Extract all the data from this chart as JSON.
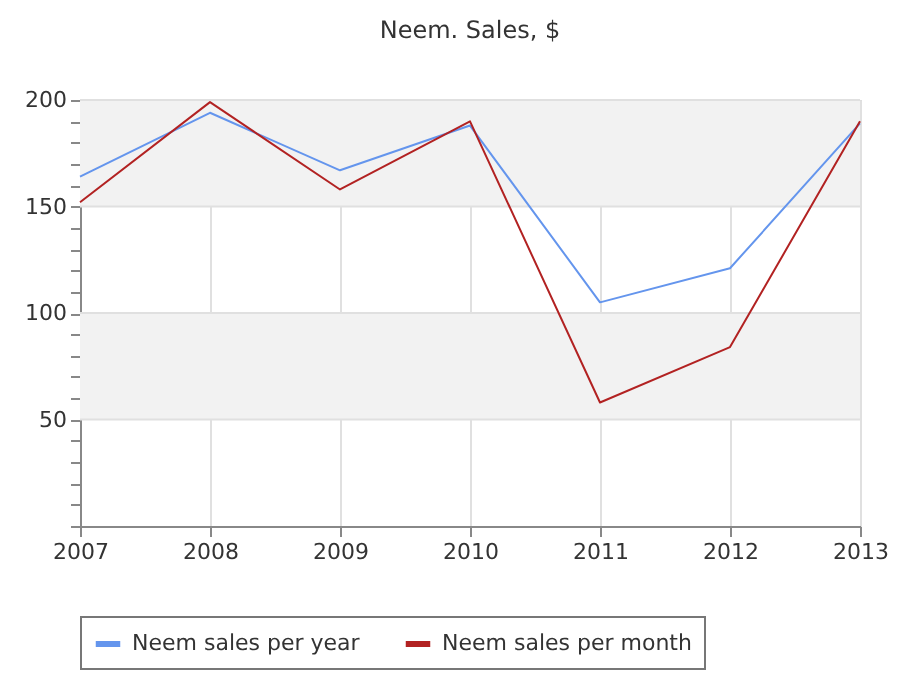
{
  "chart_data": {
    "type": "line",
    "title": "Neem. Sales, $",
    "x": [
      2007,
      2008,
      2009,
      2010,
      2011,
      2012,
      2013
    ],
    "series": [
      {
        "name": "Neem sales per year",
        "color": "#6495ed",
        "values": [
          164,
          194,
          167,
          188,
          105,
          121,
          189
        ]
      },
      {
        "name": "Neem sales per month",
        "color": "#b22222",
        "values": [
          152,
          199,
          158,
          190,
          58,
          84,
          190
        ]
      }
    ],
    "xlim": [
      2007,
      2013
    ],
    "xticks": [
      2007,
      2008,
      2009,
      2010,
      2011,
      2012,
      2013
    ],
    "ylim": [
      0,
      200
    ],
    "yticks": [
      {
        "value": 0,
        "label": null
      },
      {
        "value": 10,
        "label": null
      },
      {
        "value": 20,
        "label": null
      },
      {
        "value": 30,
        "label": null
      },
      {
        "value": 40,
        "label": null
      },
      50,
      {
        "value": 60,
        "label": null
      },
      {
        "value": 70,
        "label": null
      },
      {
        "value": 80,
        "label": null
      },
      {
        "value": 90,
        "label": null
      },
      100,
      {
        "value": 110,
        "label": null
      },
      {
        "value": 120,
        "label": null
      },
      {
        "value": 130,
        "label": null
      },
      {
        "value": 140,
        "label": null
      },
      150,
      {
        "value": 160,
        "label": null
      },
      {
        "value": 170,
        "label": null
      },
      {
        "value": 180,
        "label": null
      },
      {
        "value": 190,
        "label": null
      },
      200
    ],
    "bands": [
      {
        "axis": "y",
        "from": 50,
        "to": 100,
        "color": "#f2f2f2"
      },
      {
        "axis": "y",
        "from": 150,
        "to": 200,
        "color": "#f2f2f2"
      }
    ],
    "grid": true,
    "legend": "bottom",
    "marker": "none",
    "line_style": "solid"
  }
}
